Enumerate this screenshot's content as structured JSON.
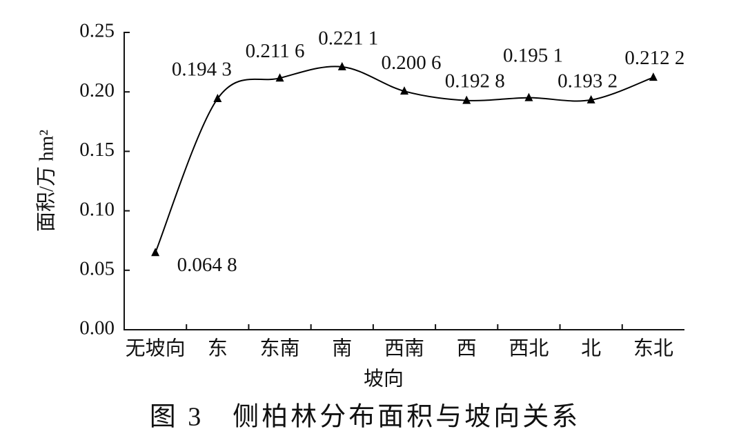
{
  "chart_data": {
    "type": "line",
    "title": "图 3　侧柏林分布面积与坡向关系",
    "x_label": "坡向",
    "y_label": "面积/万 hm²",
    "categories": [
      "无坡向",
      "东",
      "东南",
      "南",
      "西南",
      "西",
      "西北",
      "北",
      "东北"
    ],
    "values": [
      0.0648,
      0.1943,
      0.2116,
      0.2211,
      0.2006,
      0.1928,
      0.1951,
      0.1932,
      0.2122
    ],
    "value_labels": [
      "0.064 8",
      "0.194 3",
      "0.211 6",
      "0.221 1",
      "0.200 6",
      "0.192 8",
      "0.195 1",
      "0.193 2",
      "0.212 2"
    ],
    "color": "#000000",
    "ylim": [
      0,
      0.25
    ],
    "yticks": [
      {
        "value": 0,
        "label": "0.00"
      },
      0.05,
      {
        "value": 0.1,
        "label": "0.10"
      },
      0.15,
      {
        "value": 0.2,
        "label": "0.20"
      },
      0.25
    ],
    "grid": false
  }
}
